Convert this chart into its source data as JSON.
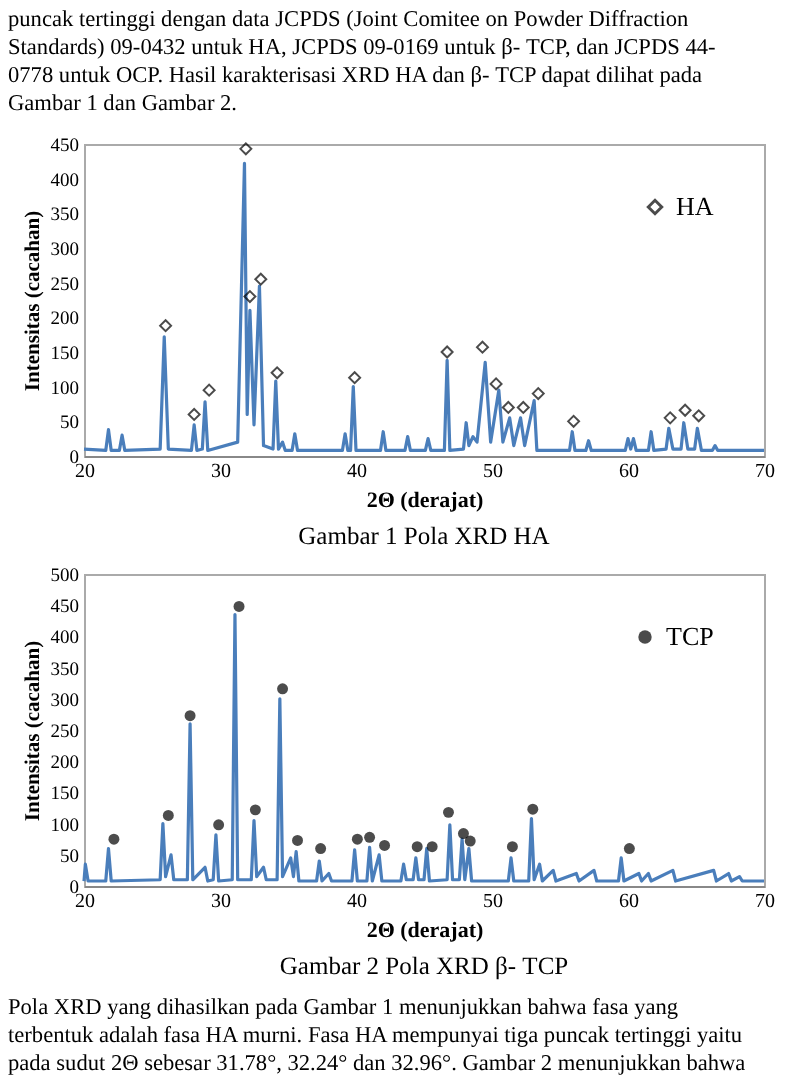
{
  "chart_data": [
    {
      "type": "other",
      "annotations": [
        "puncak tertinggi dengan data JCPDS (Joint Comitee on Powder Diffraction",
        "Standards) 09-0432 untuk HA, JCPDS 09-0169 untuk β- TCP, dan JCPDS 44-",
        "0778 untuk OCP. Hasil karakterisasi XRD HA dan β- TCP dapat dilihat pada",
        "Gambar 1 dan Gambar 2."
      ]
    },
    {
      "type": "line",
      "xlabel": "2Θ (derajat)",
      "ylabel": "Intensitas (cacahan)",
      "xlim": [
        20,
        70
      ],
      "xticks": [
        20,
        30,
        40,
        50,
        60,
        70
      ],
      "ylim": [
        0,
        450
      ],
      "yticks": [
        0,
        50,
        100,
        150,
        200,
        250,
        300,
        350,
        400,
        450
      ],
      "grid": false,
      "legend": "top right",
      "annotations": [
        "Gambar 1 Pola XRD HA"
      ],
      "series": [
        {
          "type": "line",
          "color": "#4a7ebb",
          "x": [
            20,
            21.6,
            21.8,
            22.0,
            22.6,
            22.8,
            23.0,
            25.6,
            25.9,
            26.2,
            27.9,
            28.1,
            28.3,
            28.7,
            28.9,
            29.1,
            31.3,
            31.8,
            32.0,
            32.2,
            32.5,
            32.9,
            33.2,
            33.9,
            34.1,
            34.3,
            34.6,
            34.8,
            35.3,
            35.5,
            35.7,
            39.0,
            39.2,
            39.4,
            39.6,
            39.8,
            40.0,
            41.8,
            42.0,
            42.2,
            43.6,
            43.8,
            44.0,
            45.1,
            45.3,
            45.5,
            46.5,
            46.7,
            46.9,
            47.9,
            48.1,
            48.3,
            48.6,
            48.9,
            49.5,
            49.9,
            50.5,
            50.8,
            51.3,
            51.6,
            52.1,
            52.4,
            53.1,
            53.3,
            55.7,
            55.9,
            56.1,
            56.9,
            57.1,
            57.3,
            59.8,
            60.0,
            60.2,
            60.4,
            60.6,
            61.5,
            61.7,
            61.9,
            62.8,
            63.0,
            63.3,
            63.9,
            64.1,
            64.4,
            64.9,
            65.1,
            65.4,
            66.2,
            66.4,
            66.6,
            70
          ],
          "values": [
            10,
            8,
            38,
            8,
            8,
            30,
            8,
            10,
            172,
            10,
            8,
            45,
            8,
            10,
            78,
            8,
            20,
            422,
            60,
            210,
            45,
            245,
            15,
            10,
            108,
            10,
            20,
            8,
            8,
            32,
            8,
            8,
            32,
            8,
            8,
            100,
            8,
            8,
            35,
            8,
            8,
            28,
            8,
            8,
            25,
            8,
            8,
            138,
            8,
            10,
            48,
            15,
            28,
            20,
            135,
            20,
            95,
            20,
            55,
            15,
            55,
            15,
            80,
            8,
            8,
            35,
            8,
            8,
            22,
            8,
            8,
            25,
            10,
            25,
            8,
            8,
            35,
            8,
            10,
            40,
            10,
            10,
            48,
            10,
            10,
            40,
            8,
            8,
            15,
            8,
            8
          ]
        },
        {
          "type": "scatter",
          "name": "HA",
          "color": "#000000",
          "marker": "diamond",
          "x": [
            26.0,
            28.1,
            29.2,
            31.9,
            32.2,
            33.0,
            34.2,
            39.9,
            46.7,
            49.3,
            50.3,
            51.2,
            52.3,
            53.4,
            56.0,
            63.1,
            64.2,
            65.2
          ],
          "values": [
            188,
            60,
            95,
            443,
            230,
            255,
            120,
            113,
            150,
            157,
            104,
            70,
            70,
            90,
            50,
            55,
            66,
            58
          ]
        }
      ]
    },
    {
      "type": "line",
      "xlabel": "2Θ (derajat)",
      "ylabel": "Intensitas (cacahan)",
      "xlim": [
        20,
        70
      ],
      "xticks": [
        20,
        30,
        40,
        50,
        60,
        70
      ],
      "ylim": [
        0,
        500
      ],
      "yticks": [
        0,
        50,
        100,
        150,
        200,
        250,
        300,
        350,
        400,
        450,
        500
      ],
      "grid": false,
      "legend": "top right",
      "annotations": [
        "Gambar 2 Pola XRD β- TCP"
      ],
      "series": [
        {
          "type": "line",
          "color": "#4a7ebb",
          "x": [
            20,
            20.1,
            20.3,
            21.6,
            21.8,
            22.0,
            25.6,
            25.8,
            26.0,
            26.4,
            26.6,
            27.6,
            27.8,
            28.0,
            28.9,
            29.1,
            29.5,
            29.7,
            29.9,
            30.9,
            31.1,
            31.3,
            32.3,
            32.5,
            32.7,
            33.2,
            33.4,
            34.2,
            34.4,
            34.6,
            35.2,
            35.4,
            35.6,
            35.8,
            37.1,
            37.3,
            37.5,
            38.0,
            38.2,
            39.7,
            39.9,
            40.1,
            40.8,
            41.0,
            41.2,
            41.7,
            41.9,
            43.3,
            43.5,
            43.7,
            44.2,
            44.4,
            44.6,
            45.0,
            45.2,
            45.4,
            46.7,
            46.9,
            47.1,
            47.6,
            47.8,
            48.0,
            48.3,
            48.5,
            51.2,
            51.4,
            51.6,
            52.7,
            52.9,
            53.1,
            53.5,
            53.7,
            54.5,
            54.7,
            56.2,
            56.4,
            57.5,
            57.7,
            59.3,
            59.5,
            59.7,
            60.8,
            61.0,
            61.5,
            61.7,
            63.3,
            63.5,
            66.3,
            66.5,
            67.4,
            67.6,
            68.2,
            68.4,
            70
          ],
          "values": [
            8,
            35,
            8,
            8,
            60,
            8,
            10,
            100,
            15,
            50,
            10,
            10,
            260,
            10,
            30,
            8,
            10,
            82,
            8,
            10,
            435,
            10,
            10,
            105,
            15,
            30,
            10,
            10,
            300,
            15,
            45,
            15,
            55,
            8,
            8,
            40,
            8,
            20,
            8,
            8,
            58,
            8,
            8,
            62,
            8,
            50,
            8,
            8,
            35,
            10,
            10,
            45,
            10,
            10,
            60,
            8,
            10,
            98,
            10,
            10,
            75,
            10,
            60,
            8,
            8,
            45,
            8,
            8,
            108,
            10,
            35,
            8,
            25,
            8,
            20,
            8,
            25,
            8,
            8,
            45,
            8,
            20,
            8,
            20,
            8,
            25,
            8,
            25,
            8,
            20,
            8,
            15,
            8,
            8
          ]
        },
        {
          "type": "scatter",
          "name": "TCP",
          "color": "#000000",
          "marker": "circle",
          "x": [
            22.2,
            26.2,
            27.8,
            29.9,
            31.4,
            32.6,
            34.6,
            35.7,
            37.4,
            40.1,
            41.0,
            42.1,
            44.5,
            45.6,
            46.8,
            47.9,
            48.4,
            51.5,
            53.0,
            60.1
          ],
          "values": [
            75,
            113,
            273,
            98,
            448,
            122,
            316,
            73,
            60,
            75,
            78,
            65,
            63,
            63,
            118,
            84,
            72,
            63,
            123,
            60
          ]
        }
      ]
    },
    {
      "type": "other",
      "annotations": [
        "Pola XRD yang dihasilkan pada Gambar 1 menunjukkan bahwa fasa yang",
        "terbentuk adalah fasa HA murni. Fasa HA mempunyai tiga puncak tertinggi yaitu",
        "pada sudut 2Θ sebesar 31.78°, 32.24° dan 32.96°. Gambar 2 menunjukkan bahwa"
      ]
    }
  ]
}
